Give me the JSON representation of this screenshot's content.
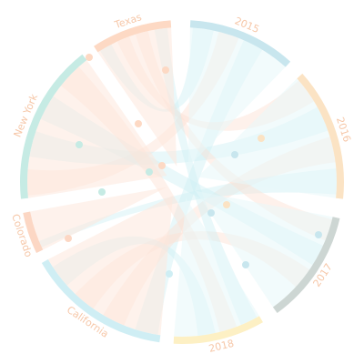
{
  "chart_data": {
    "type": "chord",
    "groups": [
      {
        "name": "2015",
        "kind": "year",
        "color": "#c8e6ee"
      },
      {
        "name": "2016",
        "kind": "year",
        "color": "#fbe3c4"
      },
      {
        "name": "2017",
        "kind": "year",
        "color": "#cdd6d3"
      },
      {
        "name": "2018",
        "kind": "year",
        "color": "#fdf0c4"
      },
      {
        "name": "California",
        "kind": "state",
        "color": "#cfeef4"
      },
      {
        "name": "Colorado",
        "kind": "state",
        "color": "#fcd7c4"
      },
      {
        "name": "New York",
        "kind": "state",
        "color": "#c6ebe4"
      },
      {
        "name": "Texas",
        "kind": "state",
        "color": "#fdd9c4"
      }
    ],
    "links": [
      {
        "source": "2015",
        "target": "Texas"
      },
      {
        "source": "2015",
        "target": "New York"
      },
      {
        "source": "2015",
        "target": "California"
      },
      {
        "source": "2016",
        "target": "Texas"
      },
      {
        "source": "2016",
        "target": "New York"
      },
      {
        "source": "2016",
        "target": "California"
      },
      {
        "source": "2016",
        "target": "Colorado"
      },
      {
        "source": "2017",
        "target": "Texas"
      },
      {
        "source": "2017",
        "target": "New York"
      },
      {
        "source": "2017",
        "target": "California"
      },
      {
        "source": "2018",
        "target": "Texas"
      },
      {
        "source": "2018",
        "target": "New York"
      },
      {
        "source": "2018",
        "target": "California"
      }
    ]
  }
}
